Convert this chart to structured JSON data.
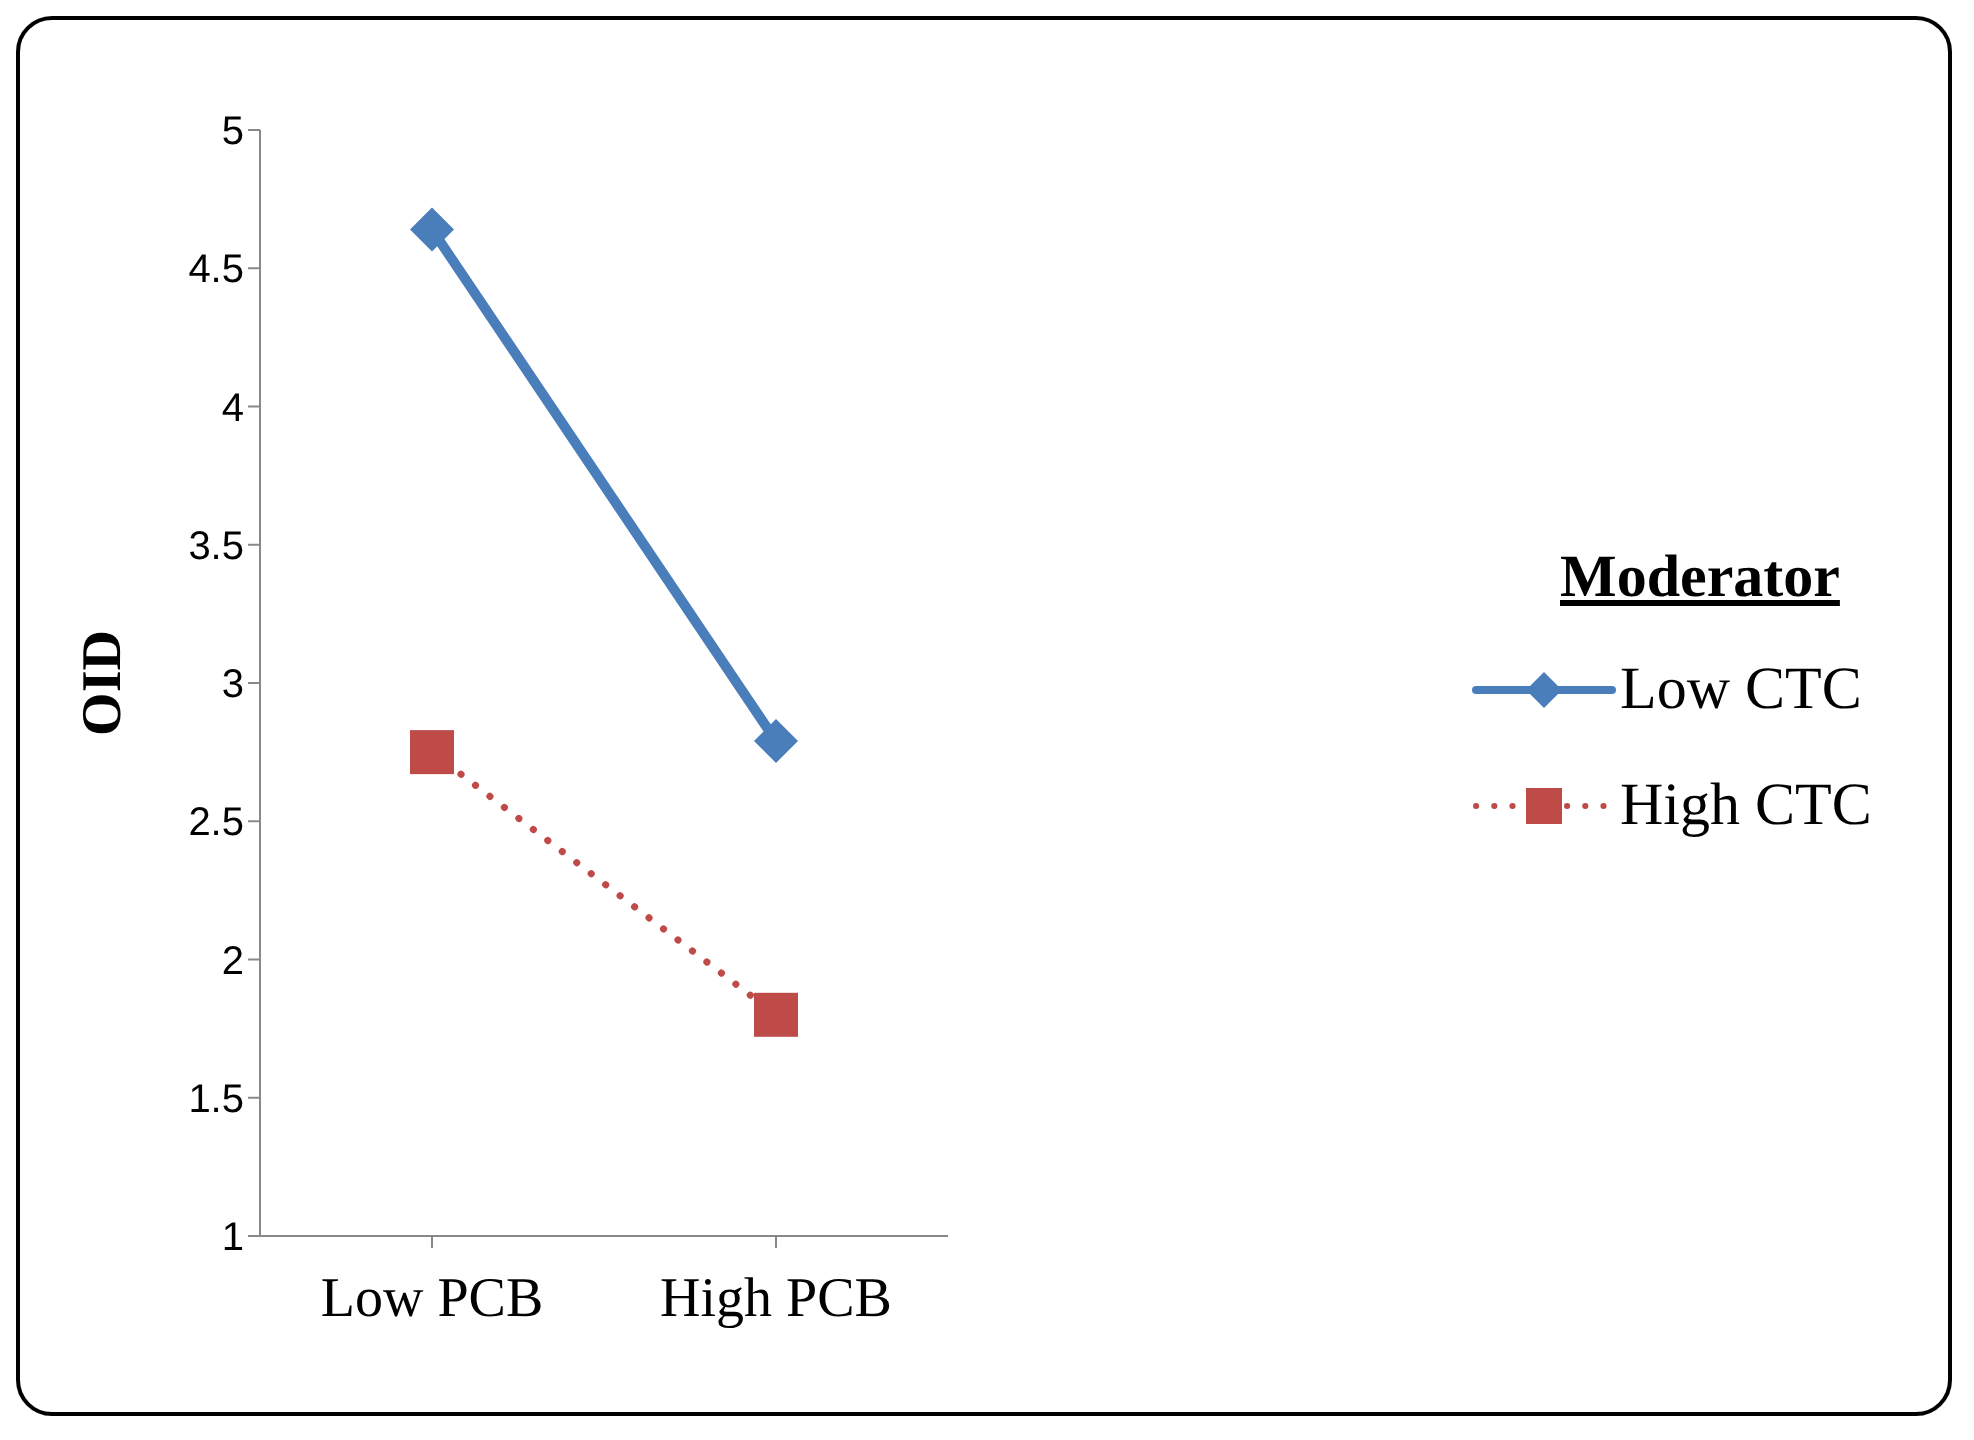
{
  "chart_data": {
    "type": "line",
    "ylabel": "OID",
    "legend_title": "Moderator",
    "categories": [
      "Low PCB",
      "High PCB"
    ],
    "series": [
      {
        "name": "Low CTC",
        "color": "#4a7ebb",
        "values": [
          4.64,
          2.79
        ],
        "marker": "diamond",
        "line_style": "solid"
      },
      {
        "name": "High CTC",
        "color": "#be4b48",
        "values": [
          2.75,
          1.8
        ],
        "marker": "square",
        "line_style": "dotted"
      }
    ],
    "ylim": [
      1,
      5
    ],
    "yticks": [
      1,
      1.5,
      2,
      2.5,
      3,
      3.5,
      4,
      4.5,
      5
    ],
    "grid": false,
    "legend": "right"
  }
}
